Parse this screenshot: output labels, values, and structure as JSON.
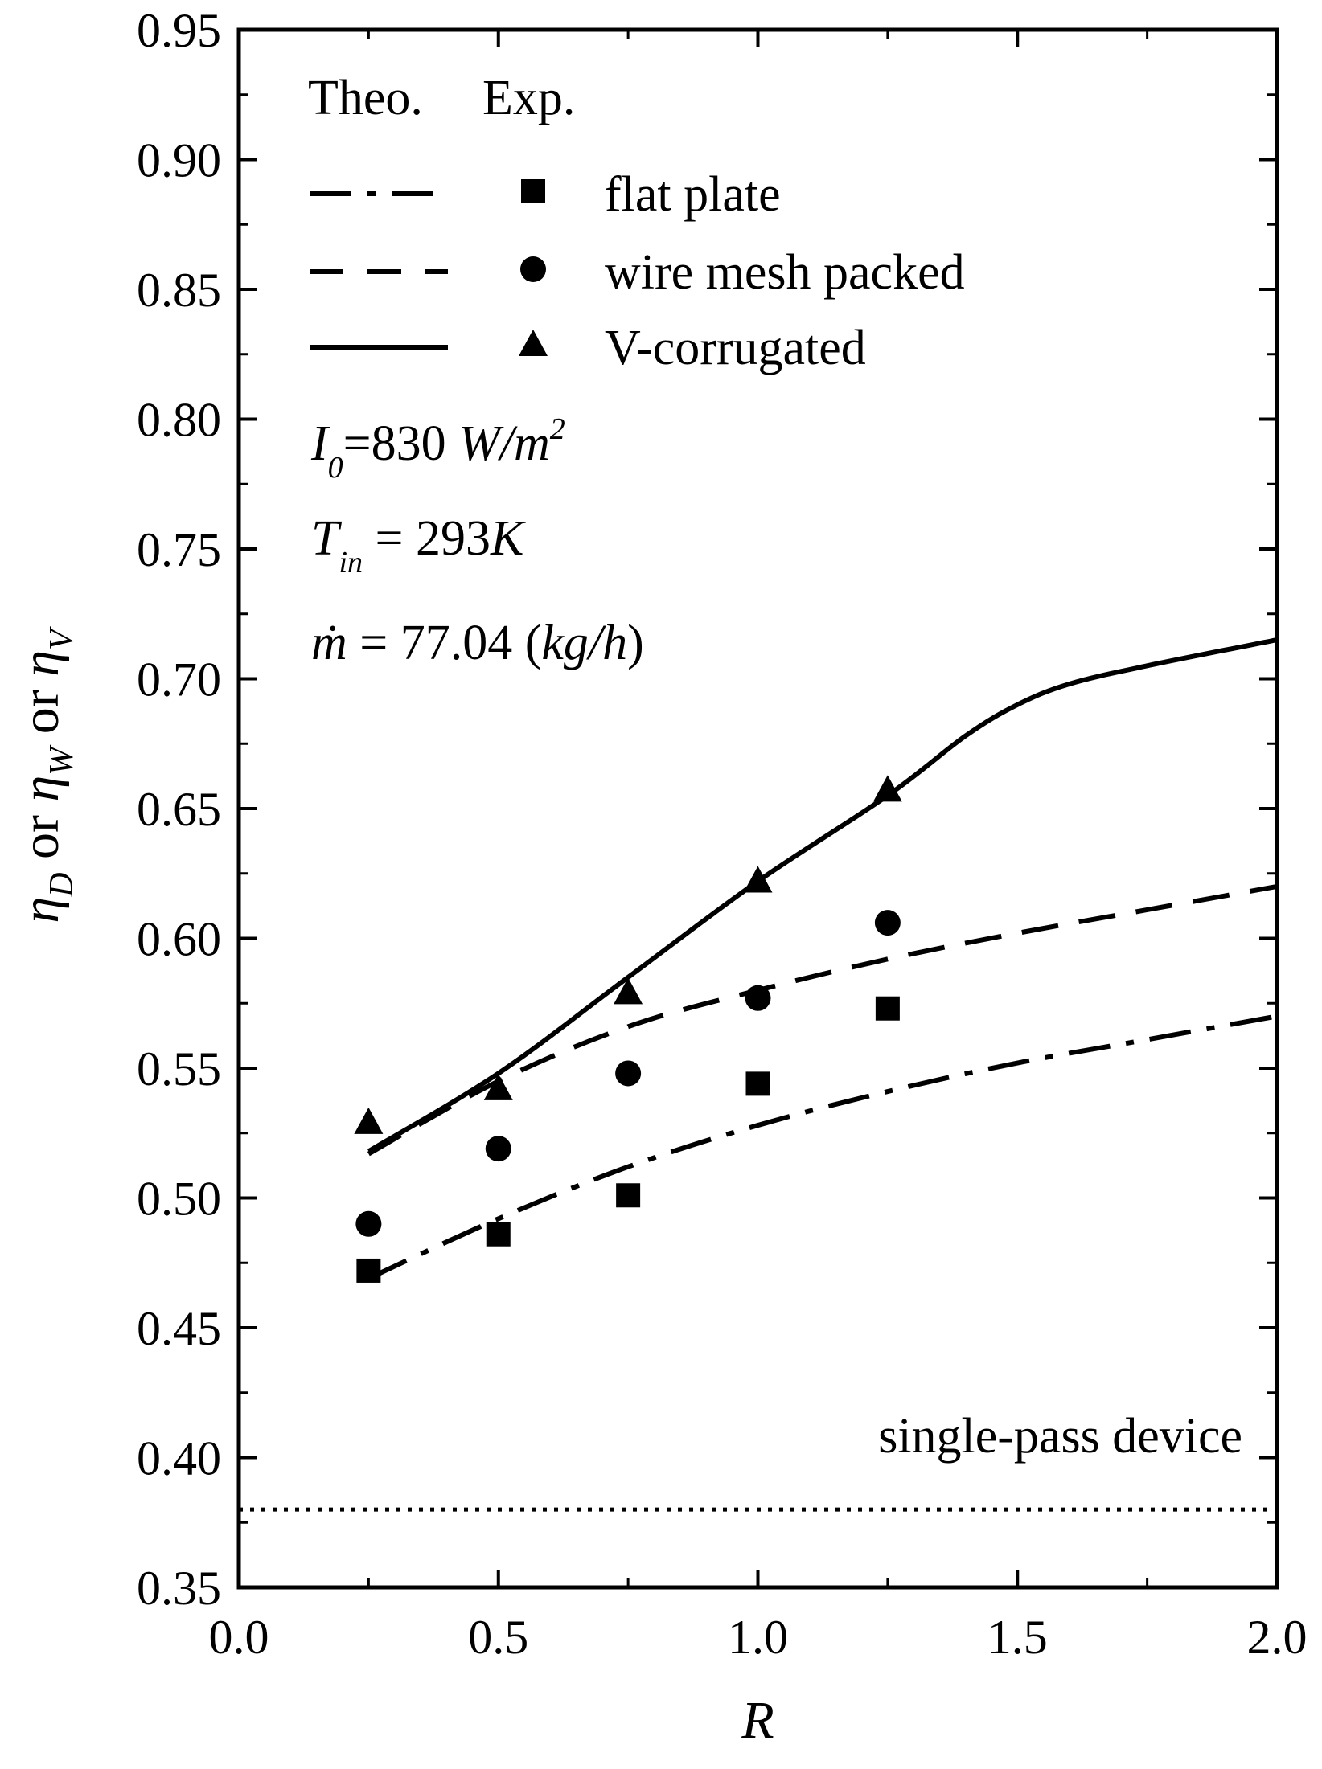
{
  "chart_data": {
    "type": "line",
    "xlabel": "R",
    "ylabel_parts": [
      "η",
      "D",
      " or ",
      "η",
      "W",
      " or ",
      "η",
      "V"
    ],
    "xlim": [
      0.0,
      2.0
    ],
    "ylim": [
      0.35,
      0.95
    ],
    "x_ticks": [
      "0.0",
      "0.5",
      "1.0",
      "1.5",
      "2.0"
    ],
    "x_tick_values": [
      0.0,
      0.5,
      1.0,
      1.5,
      2.0
    ],
    "y_ticks": [
      "0.35",
      "0.40",
      "0.45",
      "0.50",
      "0.55",
      "0.60",
      "0.65",
      "0.70",
      "0.75",
      "0.80",
      "0.85",
      "0.90",
      "0.95"
    ],
    "y_tick_values": [
      0.35,
      0.4,
      0.45,
      0.5,
      0.55,
      0.6,
      0.65,
      0.7,
      0.75,
      0.8,
      0.85,
      0.9,
      0.95
    ],
    "legend": {
      "header_theo": "Theo.",
      "header_exp": "Exp.",
      "entries": [
        {
          "label": "flat plate",
          "line_style": "dashdot",
          "marker": "square"
        },
        {
          "label": "wire mesh packed",
          "line_style": "dashed",
          "marker": "circle"
        },
        {
          "label": "V-corrugated",
          "line_style": "solid",
          "marker": "triangle"
        }
      ]
    },
    "conditions": [
      {
        "sym": "I",
        "sub": "0",
        "rest": "=830 ",
        "unit": "W/m",
        "sup": "2"
      },
      {
        "sym": "T",
        "sub": "in",
        "rest": " = 293",
        "unit": "K",
        "sup": ""
      },
      {
        "sym": "ṁ",
        "sub": "",
        "rest": " = 77.04 (",
        "unit": "kg/h",
        "sup": "",
        "close": ")"
      }
    ],
    "theory_series": [
      {
        "name": "flat plate",
        "style": "dashdot",
        "x": [
          0.25,
          0.5,
          0.75,
          1.0,
          1.25,
          1.5,
          1.75,
          2.0
        ],
        "y": [
          0.469,
          0.492,
          0.512,
          0.528,
          0.541,
          0.552,
          0.561,
          0.57
        ]
      },
      {
        "name": "wire mesh packed",
        "style": "dashed",
        "x": [
          0.25,
          0.5,
          0.75,
          1.0,
          1.25,
          1.5,
          1.75,
          2.0
        ],
        "y": [
          0.517,
          0.545,
          0.566,
          0.58,
          0.592,
          0.602,
          0.611,
          0.62
        ]
      },
      {
        "name": "V-corrugated",
        "style": "solid",
        "x": [
          0.25,
          0.5,
          0.75,
          1.0,
          1.25,
          1.4,
          1.5,
          1.6,
          1.75,
          2.0
        ],
        "y": [
          0.518,
          0.548,
          0.585,
          0.622,
          0.655,
          0.678,
          0.69,
          0.698,
          0.705,
          0.715
        ]
      }
    ],
    "experimental_series": [
      {
        "name": "flat plate",
        "marker": "square",
        "x": [
          0.25,
          0.5,
          0.75,
          1.0,
          1.25
        ],
        "y": [
          0.472,
          0.486,
          0.501,
          0.544,
          0.573
        ]
      },
      {
        "name": "wire mesh packed",
        "marker": "circle",
        "x": [
          0.25,
          0.5,
          0.75,
          1.0,
          1.25
        ],
        "y": [
          0.49,
          0.519,
          0.548,
          0.577,
          0.606
        ]
      },
      {
        "name": "V-corrugated",
        "marker": "triangle",
        "x": [
          0.25,
          0.5,
          0.75,
          1.0,
          1.25
        ],
        "y": [
          0.529,
          0.542,
          0.579,
          0.622,
          0.657
        ]
      }
    ],
    "reference_line": {
      "name": "single-pass device",
      "style": "dotted",
      "y": 0.38
    },
    "annotation": "single-pass device"
  }
}
